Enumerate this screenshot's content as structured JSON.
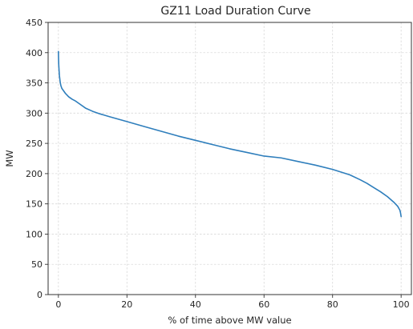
{
  "chart_data": {
    "type": "line",
    "title": "GZ11 Load Duration Curve",
    "xlabel": "% of time above MW value",
    "ylabel": "MW",
    "xlim": [
      -3,
      103
    ],
    "ylim": [
      0,
      450
    ],
    "xticks": [
      0,
      20,
      40,
      60,
      80,
      100
    ],
    "yticks": [
      0,
      50,
      100,
      150,
      200,
      250,
      300,
      350,
      400,
      450
    ],
    "grid": true,
    "color": "#2e7ebc",
    "series": [
      {
        "x": [
          0,
          0.05,
          0.1,
          0.2,
          0.3,
          0.5,
          0.7,
          1,
          1.5,
          2,
          3,
          4,
          5,
          6,
          8,
          10,
          12,
          15,
          20,
          25,
          30,
          35,
          40,
          45,
          50,
          55,
          60,
          65,
          70,
          75,
          80,
          85,
          88,
          90,
          92,
          94,
          96,
          97,
          98,
          98.5,
          99,
          99.3,
          99.6,
          99.8,
          100
        ],
        "y": [
          402,
          390,
          380,
          370,
          362,
          352,
          346,
          341,
          337,
          333,
          327,
          323,
          320,
          316,
          308,
          303,
          299,
          294,
          286,
          278,
          270,
          262,
          255,
          248,
          241,
          235,
          229,
          226,
          220,
          214,
          207,
          198,
          190,
          184,
          177,
          170,
          162,
          157,
          152,
          149,
          146,
          143,
          140,
          136,
          129
        ]
      }
    ]
  }
}
